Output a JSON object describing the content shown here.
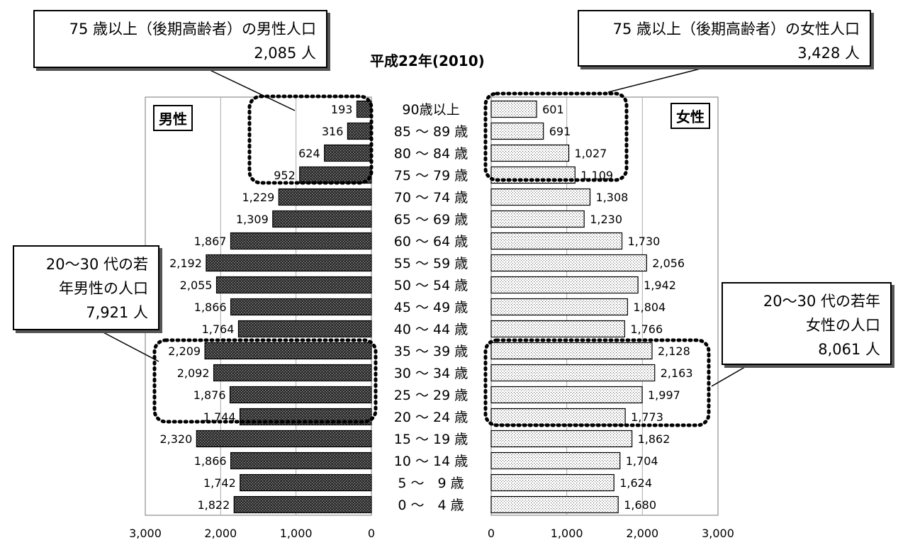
{
  "title": "平成22年(2010)",
  "labels": {
    "male": "男性",
    "female": "女性"
  },
  "callouts": {
    "male_elderly": {
      "line1": "75 歳以上（後期高齢者）の男性人口",
      "line2": "2,085 人"
    },
    "female_elderly": {
      "line1": "75 歳以上（後期高齢者）の女性人口",
      "line2": "3,428 人"
    },
    "male_young": {
      "line1": "20～30 代の若",
      "line2": "年男性の人口",
      "line3": "7,921 人"
    },
    "female_young": {
      "line1": "20～30 代の若年",
      "line2": "女性の人口",
      "line3": "8,061 人"
    }
  },
  "chart_data": {
    "type": "bar",
    "subtype": "population-pyramid",
    "title": "平成22年(2010)",
    "categories": [
      "90歳以上",
      "85 ～ 89 歳",
      "80 ～ 84 歳",
      "75 ～ 79 歳",
      "70 ～ 74 歳",
      "65 ～ 69 歳",
      "60 ～ 64 歳",
      "55 ～ 59 歳",
      "50 ～ 54 歳",
      "45 ～ 49 歳",
      "40 ～ 44 歳",
      "35 ～ 39 歳",
      "30 ～ 34 歳",
      "25 ～ 29 歳",
      "20 ～ 24 歳",
      "15 ～ 19 歳",
      "10 ～ 14 歳",
      "5 ～　9 歳",
      "0 ～　4 歳"
    ],
    "series": [
      {
        "name": "男性",
        "values": [
          193,
          316,
          624,
          952,
          1229,
          1309,
          1867,
          2192,
          2055,
          1866,
          1764,
          2209,
          2092,
          1876,
          1744,
          2320,
          1866,
          1742,
          1822
        ]
      },
      {
        "name": "女性",
        "values": [
          601,
          691,
          1027,
          1109,
          1308,
          1230,
          1730,
          2056,
          1942,
          1804,
          1766,
          2128,
          2163,
          1997,
          1773,
          1862,
          1704,
          1624,
          1680
        ]
      }
    ],
    "xlim": [
      0,
      3000
    ],
    "ticks": [
      0,
      1000,
      2000,
      3000
    ],
    "tick_labels": [
      "0",
      "1,000",
      "2,000",
      "3,000"
    ],
    "grid": true,
    "colors": {
      "male_fill": "#333333",
      "female_fill": "#ffffff",
      "female_dot": "#555555"
    }
  }
}
